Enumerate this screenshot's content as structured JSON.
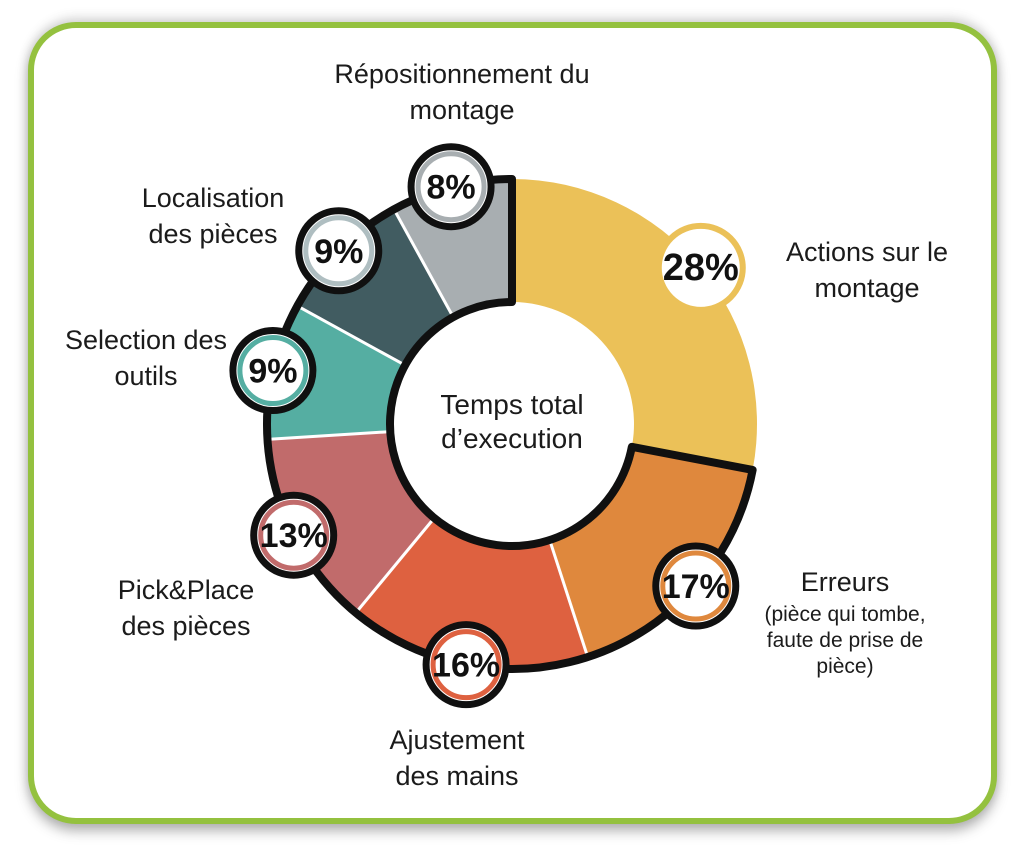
{
  "frame": {
    "border_color": "#94C13F",
    "background_color": "#ffffff"
  },
  "center": {
    "line1": "Temps total",
    "line2": "d’execution"
  },
  "labels": {
    "repositionnement": {
      "line1": "Répositionnement du",
      "line2": "montage"
    },
    "localisation": {
      "line1": "Localisation",
      "line2": "des pièces"
    },
    "selection": {
      "line1": "Selection des",
      "line2": "outils"
    },
    "pickplace": {
      "line1": "Pick&Place",
      "line2": "des pièces"
    },
    "ajustement": {
      "line1": "Ajustement",
      "line2": "des mains"
    },
    "actions": {
      "line1": "Actions sur le",
      "line2": "montage"
    },
    "erreurs": {
      "title": "Erreurs",
      "note1": "(pièce qui tombe,",
      "note2": "faute de prise de",
      "note3": "pièce)"
    }
  },
  "chart_data": {
    "type": "pie",
    "subtype": "donut",
    "title": "Temps total d’execution",
    "unit": "%",
    "total": 100,
    "start_angle_deg": 0,
    "direction": "clockwise",
    "outline_color": "#101010",
    "separator_color": "#ffffff",
    "badge_fill": "#ffffff",
    "badge_text_color": "#111111",
    "segments": [
      {
        "name": "actions-sur-le-montage",
        "label": "Actions sur le montage",
        "value": 28,
        "color": "#EBC158",
        "ring": "#EBC158",
        "outlined": false
      },
      {
        "name": "erreurs",
        "label": "Erreurs (pièce qui tombe, faute de prise de pièce)",
        "value": 17,
        "color": "#DF883D",
        "ring": "#DF883D",
        "outlined": true
      },
      {
        "name": "ajustement-des-mains",
        "label": "Ajustement des mains",
        "value": 16,
        "color": "#DE6140",
        "ring": "#DE6140",
        "outlined": true
      },
      {
        "name": "pick-place-des-pieces",
        "label": "Pick&Place des pièces",
        "value": 13,
        "color": "#C16B6B",
        "ring": "#C16B6B",
        "outlined": true
      },
      {
        "name": "selection-des-outils",
        "label": "Selection des outils",
        "value": 9,
        "color": "#55AEA2",
        "ring": "#55AEA2",
        "outlined": true
      },
      {
        "name": "localisation-des-pieces",
        "label": "Localisation des pièces",
        "value": 9,
        "color": "#415C61",
        "ring": "#AFBEC1",
        "outlined": true
      },
      {
        "name": "repositionnement-du-montage",
        "label": "Répositionnement du montage",
        "value": 8,
        "color": "#A8AEB1",
        "ring": "#A8AEB1",
        "outlined": true
      }
    ]
  }
}
